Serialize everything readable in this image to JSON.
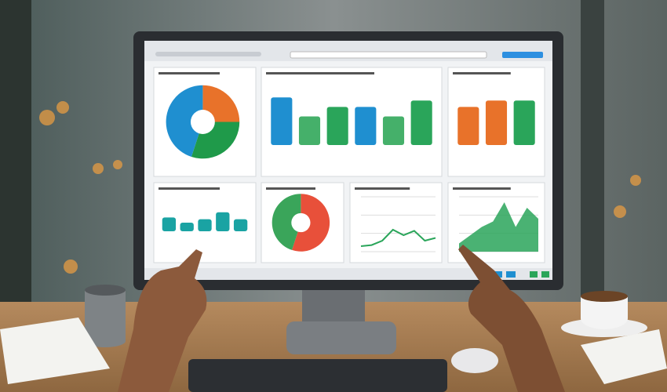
{
  "panels": [
    {
      "type": "pie",
      "values": [
        25,
        30,
        45
      ],
      "colors": [
        "#e8722a",
        "#1f9a4a",
        "#1f8fd0"
      ]
    },
    {
      "type": "bar",
      "values": [
        75,
        45,
        60,
        60,
        45,
        70
      ],
      "colors": [
        "#1f8fd0",
        "#45b06a",
        "#2aa55a",
        "#1f8fd0",
        "#45b06a",
        "#2aa55a"
      ],
      "ylim": [
        0,
        100
      ]
    },
    {
      "type": "bar",
      "values": [
        60,
        70,
        70
      ],
      "colors": [
        "#e8722a",
        "#e8722a",
        "#2aa55a"
      ],
      "ylim": [
        0,
        100
      ]
    },
    {
      "type": "bar",
      "values": [
        40,
        25,
        35,
        55,
        35
      ],
      "colors": [
        "#1aa3a3",
        "#1aa3a3",
        "#1aa3a3",
        "#1aa3a3",
        "#1aa3a3"
      ],
      "ylim": [
        0,
        100
      ]
    },
    {
      "type": "pie",
      "values": [
        55,
        45
      ],
      "colors": [
        "#e8503a",
        "#3aa55a"
      ]
    },
    {
      "type": "line",
      "values": [
        10,
        12,
        20,
        40,
        30,
        38,
        20,
        25
      ],
      "colors": [
        "#2aa55a"
      ],
      "ylim": [
        0,
        100
      ]
    },
    {
      "type": "area",
      "values": [
        15,
        30,
        45,
        55,
        90,
        45,
        80,
        60
      ],
      "colors": [
        "#2aa55a"
      ],
      "ylim": [
        0,
        100
      ]
    }
  ]
}
